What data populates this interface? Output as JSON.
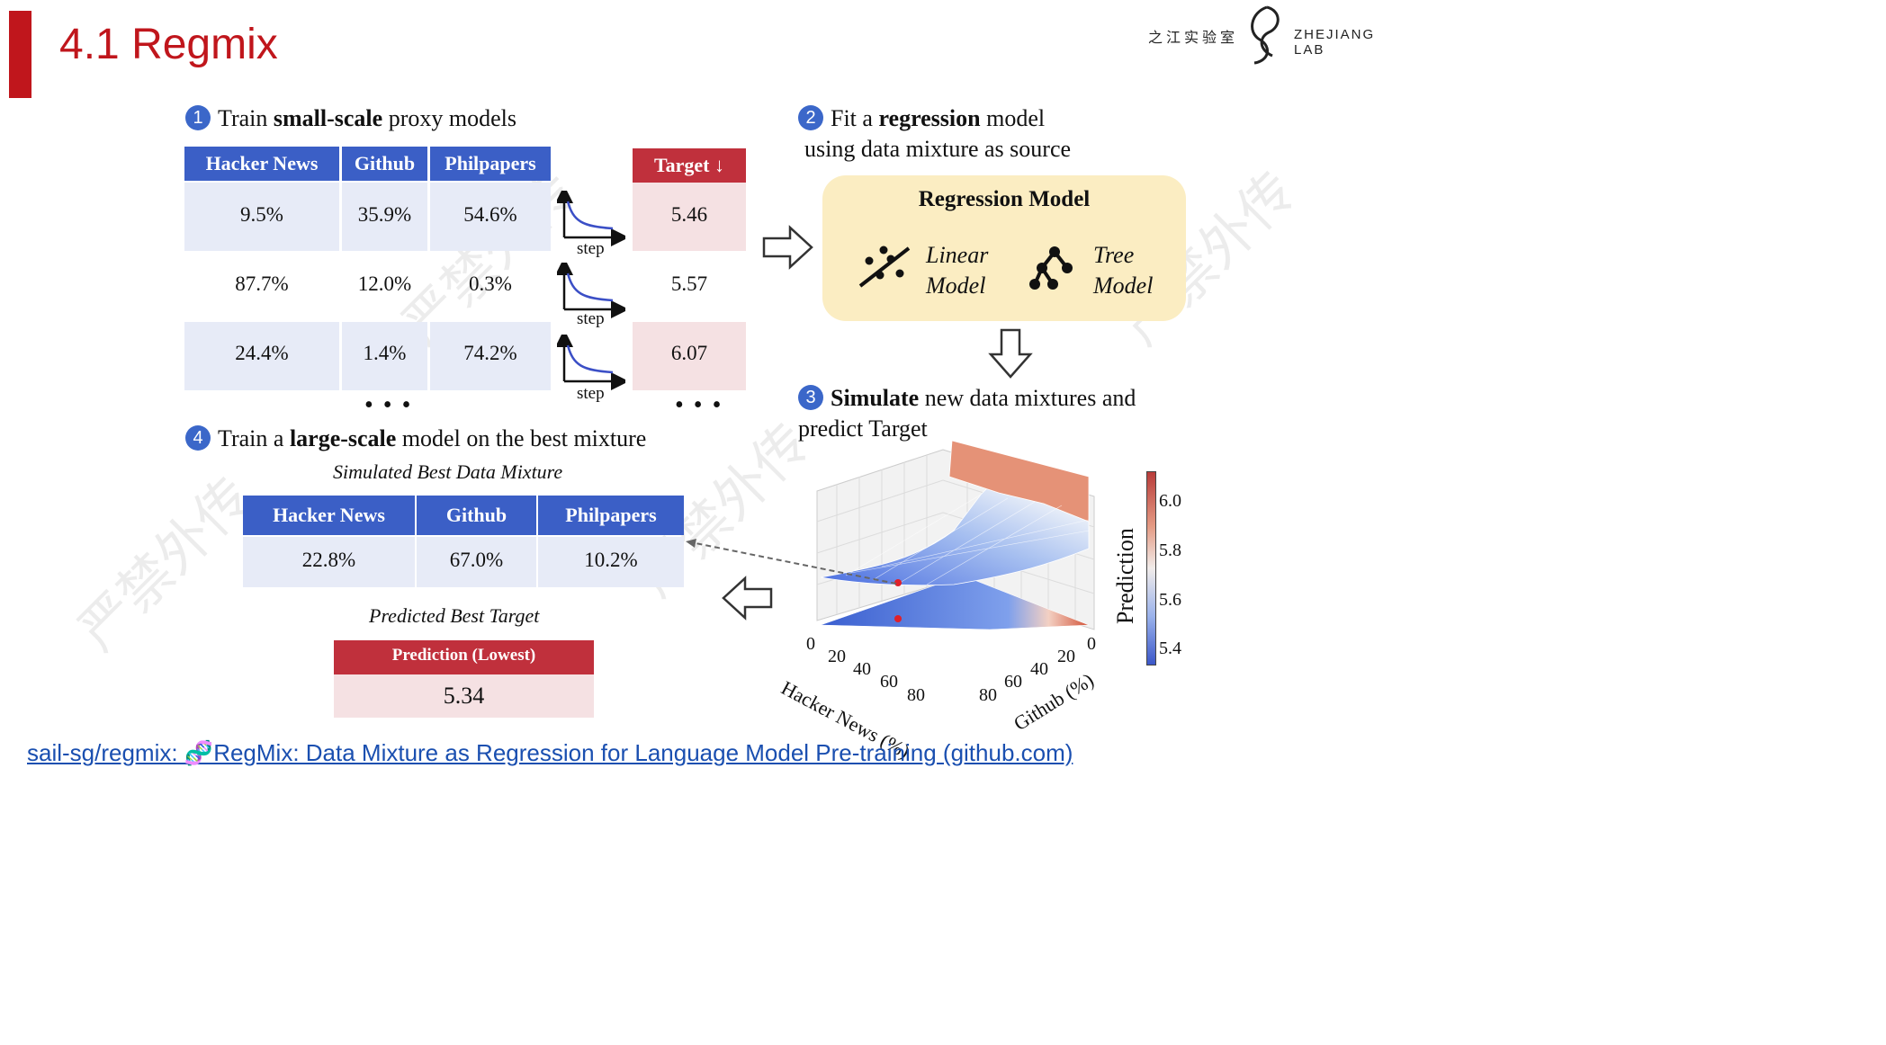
{
  "header": {
    "title": "4.1 Regmix",
    "logo_cn": "之江实验室",
    "logo_en": "ZHEJIANG LAB"
  },
  "step1": {
    "num": "1",
    "pre": "Train ",
    "bold": "small-scale",
    "post": " proxy models",
    "columns": [
      "Hacker News",
      "Github",
      "Philpapers"
    ],
    "target_header": "Target ↓",
    "rows": [
      {
        "values": [
          "9.5%",
          "35.9%",
          "54.6%"
        ],
        "target": "5.46"
      },
      {
        "values": [
          "87.7%",
          "12.0%",
          "0.3%"
        ],
        "target": "5.57"
      },
      {
        "values": [
          "24.4%",
          "1.4%",
          "74.2%"
        ],
        "target": "6.07"
      }
    ],
    "step_label": "step",
    "ellipsis": "• • •"
  },
  "step2": {
    "num": "2",
    "pre": "Fit a ",
    "bold": "regression",
    "post": " model",
    "line2": "using data mixture as source",
    "box_title": "Regression Model",
    "linear_1": "Linear",
    "linear_2": "Model",
    "tree_1": "Tree",
    "tree_2": "Model"
  },
  "step3": {
    "num": "3",
    "bold": "Simulate",
    "post": " new data mixtures and",
    "line2": "predict Target"
  },
  "step4": {
    "num": "4",
    "pre": "Train a ",
    "bold": "large-scale",
    "post": " model on the best mixture",
    "sim_caption": "Simulated Best Data Mixture",
    "columns": [
      "Hacker News",
      "Github",
      "Philpapers"
    ],
    "values": [
      "22.8%",
      "67.0%",
      "10.2%"
    ],
    "pred_caption": "Predicted Best Target",
    "pred_header": "Prediction (Lowest)",
    "pred_value": "5.34"
  },
  "plot3d": {
    "x_label": "Hacker News (%)",
    "y_label": "Github (%)",
    "colorbar_label": "Prediction",
    "x_ticks": [
      "0",
      "20",
      "40",
      "60",
      "80"
    ],
    "y_ticks": [
      "80",
      "60",
      "40",
      "20",
      "0"
    ],
    "colorbar_ticks": [
      "6.0",
      "5.8",
      "5.6",
      "5.4"
    ]
  },
  "footer": {
    "link": "sail-sg/regmix:  🧬RegMix: Data Mixture as Regression for Language Model Pre-training (github.com)"
  },
  "watermark": "严禁外传",
  "colors": {
    "accent_red": "#c0161c",
    "header_blue": "#3b5fc6",
    "target_red": "#c0303c",
    "band_blue": "#e7ebf7",
    "band_pink": "#f5e1e3",
    "reg_bg": "#fbedc2"
  }
}
